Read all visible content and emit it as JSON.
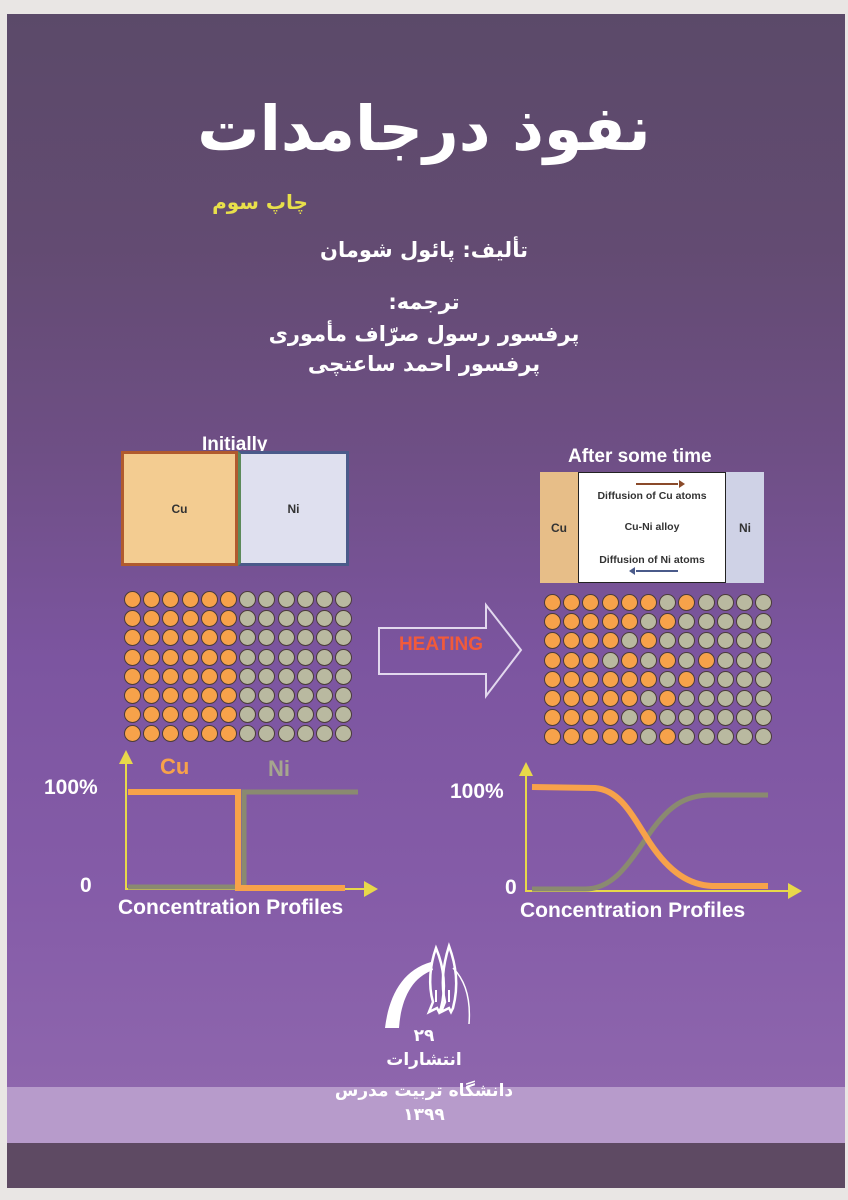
{
  "cover": {
    "title": "نفوذ درجامدات",
    "edition": "چاپ سوم",
    "author_line": "تألیف: پائول شومان",
    "translator_label": "ترجمه:",
    "translators": [
      "پرفسور رسول صرّاف مأموری",
      "پرفسور احمد ساعتچی"
    ]
  },
  "diagram": {
    "initial": {
      "heading": "Initially",
      "cu_label": "Cu",
      "ni_label": "Ni",
      "grid_rows": [
        "OOOOOOGGGGGG",
        "OOOOOOGGGGGG",
        "OOOOOOGGGGGG",
        "OOOOOOGGGGGG",
        "OOOOOOGGGGGG",
        "OOOOOOGGGGGG",
        "OOOOOOGGGGGG",
        "OOOOOOGGGGGG"
      ]
    },
    "arrow_label": "HEATING",
    "after": {
      "heading": "After some time",
      "cu_label": "Cu",
      "ni_label": "Ni",
      "alloy_label": "Cu-Ni alloy",
      "cu_flux_label": "Diffusion of Cu atoms",
      "ni_flux_label": "Diffusion of Ni atoms",
      "grid_rows": [
        "OOOOOOGOGGGG",
        "OOOOOGOGGGGG",
        "OOOOGOGGGGGG",
        "OOOGOGOGOGGG",
        "OOOOOOGOGGGG",
        "OOOOOGOGGGGG",
        "OOOOGOGGGGGG",
        "OOOOOGOGGGGG"
      ]
    },
    "colors": {
      "cu": "#f7a24a",
      "ni": "#b9b9a0",
      "axis": "#e8d84a",
      "heating": "#f25a3a"
    }
  },
  "chart_data": [
    {
      "type": "line",
      "title": "Concentration Profiles (Initially)",
      "xlabel": "Concentration Profiles",
      "ylabel": "",
      "yticks": [
        "0",
        "100%"
      ],
      "ylim": [
        0,
        100
      ],
      "x": [
        0,
        10,
        20,
        30,
        40,
        44,
        45,
        50,
        60,
        70,
        80,
        90,
        100
      ],
      "series": [
        {
          "name": "Cu",
          "values": [
            100,
            100,
            100,
            100,
            100,
            100,
            0,
            0,
            0,
            0,
            0,
            0,
            0
          ]
        },
        {
          "name": "Ni",
          "values": [
            0,
            0,
            0,
            0,
            0,
            0,
            100,
            100,
            100,
            100,
            100,
            100,
            100
          ]
        }
      ],
      "legend": [
        "Cu",
        "Ni"
      ]
    },
    {
      "type": "line",
      "title": "Concentration Profiles (After some time)",
      "xlabel": "Concentration Profiles",
      "ylabel": "",
      "yticks": [
        "0",
        "100%"
      ],
      "ylim": [
        0,
        100
      ],
      "x": [
        0,
        10,
        20,
        30,
        40,
        50,
        60,
        70,
        80,
        90,
        100
      ],
      "series": [
        {
          "name": "Cu",
          "values": [
            100,
            100,
            99,
            95,
            80,
            55,
            30,
            12,
            4,
            3,
            3
          ]
        },
        {
          "name": "Ni",
          "values": [
            0,
            0,
            1,
            5,
            20,
            45,
            72,
            90,
            95,
            95,
            95
          ]
        }
      ]
    }
  ],
  "plots": {
    "left": {
      "y_top": "100%",
      "y_bottom": "0",
      "xlabel": "Concentration Profiles",
      "legend_cu": "Cu",
      "legend_ni": "Ni"
    },
    "right": {
      "y_top": "100%",
      "y_bottom": "0",
      "xlabel": "Concentration Profiles"
    }
  },
  "publisher": {
    "series_number": "۲۹",
    "label": "انتشارات",
    "university": "دانشگاه تربیت مدرس",
    "year": "۱۳۹۹"
  }
}
